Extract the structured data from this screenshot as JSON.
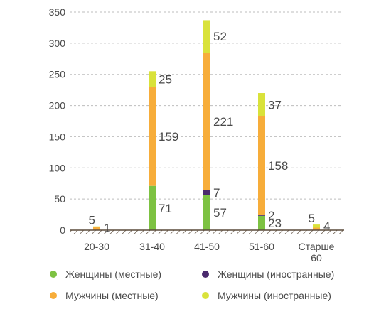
{
  "colors": {
    "women_local": "#7dc242",
    "women_foreign": "#4b2a6e",
    "men_local": "#f7ad3a",
    "men_foreign": "#d9e23a",
    "grid": "#bdbdbd",
    "text": "#4a4a4a",
    "baseline": "#5a4a3a"
  },
  "chart_data": {
    "type": "bar",
    "stacked": true,
    "categories": [
      "20-30",
      "31-40",
      "41-50",
      "51-60",
      "Старше 60"
    ],
    "category_lines": [
      [
        "20-30"
      ],
      [
        "31-40"
      ],
      [
        "41-50"
      ],
      [
        "51-60"
      ],
      [
        "Старше",
        "60"
      ]
    ],
    "series": [
      {
        "name": "Женщины (местные)",
        "key": "women_local",
        "values": [
          0,
          71,
          57,
          23,
          0
        ]
      },
      {
        "name": "Женщины (иностранные)",
        "key": "women_foreign",
        "values": [
          0,
          0,
          7,
          2,
          0
        ]
      },
      {
        "name": "Мужчины (местные)",
        "key": "men_local",
        "values": [
          5,
          159,
          221,
          158,
          4
        ]
      },
      {
        "name": "Мужчины (иностранные)",
        "key": "men_foreign",
        "values": [
          1,
          25,
          52,
          37,
          5
        ]
      }
    ],
    "data_labels": [
      [
        {
          "text": "5",
          "side": "left",
          "stack_top": true
        },
        {
          "text": "1",
          "side": "right",
          "stack_top": true
        }
      ],
      [
        {
          "text": "71",
          "series": 0
        },
        {
          "text": "159",
          "series": 2
        },
        {
          "text": "25",
          "series": 3
        }
      ],
      [
        {
          "text": "57",
          "series": 0
        },
        {
          "text": "7",
          "series": 1
        },
        {
          "text": "221",
          "series": 2
        },
        {
          "text": "52",
          "series": 3
        }
      ],
      [
        {
          "text": "23",
          "series": 0
        },
        {
          "text": "2",
          "series": 1
        },
        {
          "text": "158",
          "series": 2
        },
        {
          "text": "37",
          "series": 3
        }
      ],
      [
        {
          "text": "5",
          "side": "left",
          "stack_top": true
        },
        {
          "text": "4",
          "side": "right",
          "stack_top": true
        }
      ]
    ],
    "y_ticks": [
      0,
      50,
      100,
      150,
      200,
      250,
      300,
      350
    ],
    "ylim": [
      0,
      350
    ],
    "grid": true,
    "legend_position": "bottom"
  },
  "legend": [
    {
      "label": "Женщины (местные)",
      "key": "women_local"
    },
    {
      "label": "Женщины (иностранные)",
      "key": "women_foreign"
    },
    {
      "label": "Мужчины (местные)",
      "key": "men_local"
    },
    {
      "label": "Мужчины (иностранные)",
      "key": "men_foreign"
    }
  ]
}
